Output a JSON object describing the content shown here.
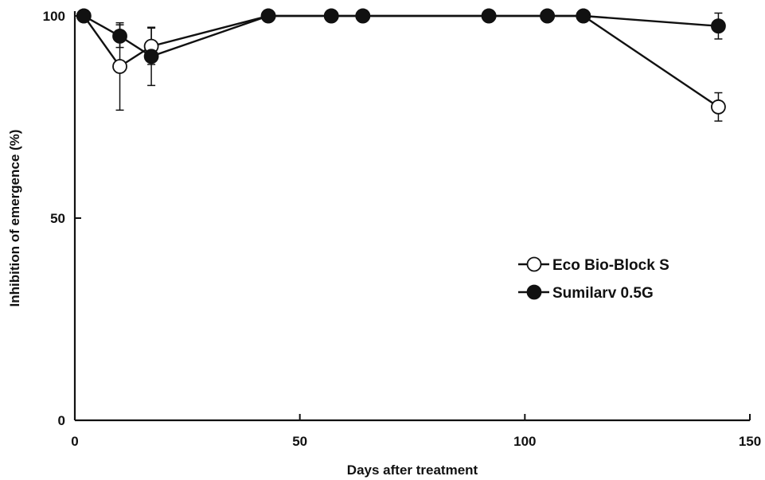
{
  "chart_data": {
    "type": "line",
    "xlabel": "Days after treatment",
    "ylabel": "Inhibition of emergence (%)",
    "xlim": [
      0,
      150
    ],
    "ylim": [
      0,
      100
    ],
    "xticks": [
      0,
      50,
      100,
      150
    ],
    "yticks": [
      0,
      50,
      100
    ],
    "grid": false,
    "legend_position": "right",
    "series": [
      {
        "name": "Eco Bio-Block S",
        "marker": "open-circle",
        "color": "#111111",
        "x": [
          2,
          10,
          17,
          43,
          57,
          64,
          92,
          105,
          113,
          143
        ],
        "y": [
          100,
          87.5,
          92.5,
          100,
          100,
          100,
          100,
          100,
          100,
          77.5
        ],
        "err": [
          0,
          10.8,
          4.5,
          0,
          0,
          0,
          0,
          0,
          0,
          3.5
        ]
      },
      {
        "name": "Sumilarv 0.5G",
        "marker": "filled-circle",
        "color": "#111111",
        "x": [
          2,
          10,
          17,
          43,
          57,
          64,
          92,
          105,
          113,
          143
        ],
        "y": [
          100,
          95,
          90,
          100,
          100,
          100,
          100,
          100,
          100,
          97.5
        ],
        "err": [
          0,
          2.8,
          7.2,
          0,
          0,
          0,
          0,
          0,
          0,
          3.2
        ]
      }
    ]
  }
}
